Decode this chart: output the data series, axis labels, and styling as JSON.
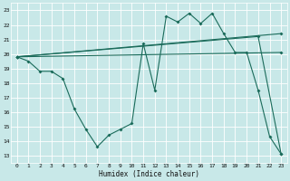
{
  "xlabel": "Humidex (Indice chaleur)",
  "background_color": "#c8e8e8",
  "grid_color": "#ffffff",
  "line_color": "#1a6b5a",
  "xlim": [
    -0.5,
    23.5
  ],
  "ylim": [
    12.5,
    23.5
  ],
  "yticks": [
    13,
    14,
    15,
    16,
    17,
    18,
    19,
    20,
    21,
    22,
    23
  ],
  "xticks": [
    0,
    1,
    2,
    3,
    4,
    5,
    6,
    7,
    8,
    9,
    10,
    11,
    12,
    13,
    14,
    15,
    16,
    17,
    18,
    19,
    20,
    21,
    22,
    23
  ],
  "main_line": {
    "x": [
      0,
      1,
      2,
      3,
      4,
      5,
      6,
      7,
      8,
      9,
      10,
      11,
      12,
      13,
      14,
      15,
      16,
      17,
      18,
      19,
      20,
      21,
      22,
      23
    ],
    "y": [
      19.8,
      19.5,
      18.8,
      18.8,
      18.3,
      16.2,
      14.8,
      13.6,
      14.4,
      14.8,
      15.2,
      20.7,
      17.5,
      22.6,
      22.2,
      22.8,
      22.1,
      22.8,
      21.4,
      20.1,
      20.1,
      17.5,
      14.3,
      13.1
    ]
  },
  "trend_lines": [
    {
      "x": [
        0,
        23
      ],
      "y": [
        19.8,
        20.1
      ]
    },
    {
      "x": [
        0,
        23
      ],
      "y": [
        19.8,
        21.4
      ]
    },
    {
      "x": [
        0,
        21,
        23
      ],
      "y": [
        19.8,
        21.2,
        13.1
      ]
    }
  ]
}
